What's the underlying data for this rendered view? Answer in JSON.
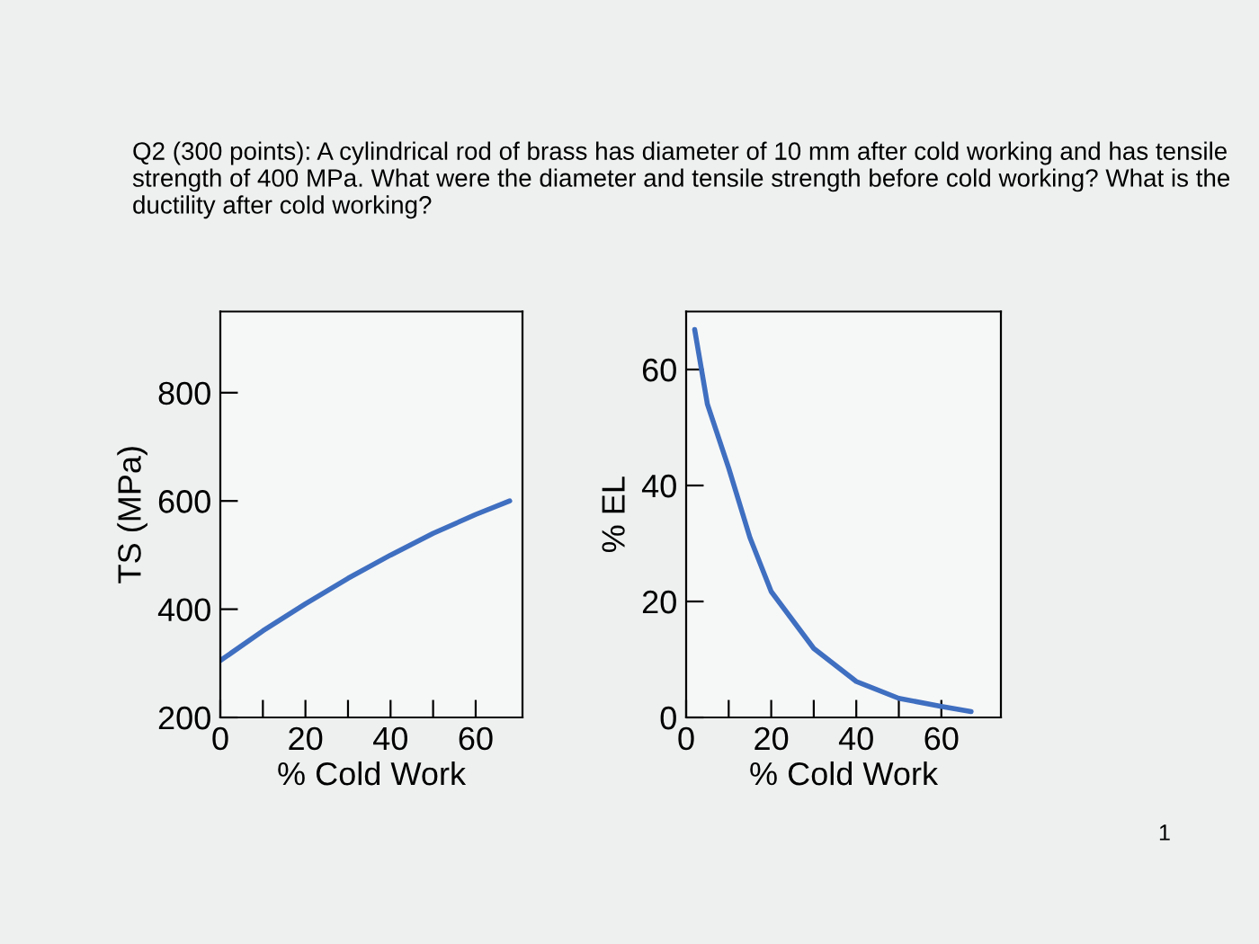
{
  "chart_data": [
    {
      "type": "line",
      "title": "Q2 (300 points): A cylindrical rod of brass has diameter of 10 mm after cold working and has tensile strength of 400 MPa. What were the diameter and tensile strength before cold working? What is the ductility after cold working?",
      "xlabel": "% Cold Work",
      "ylabel": "TS (MPa)",
      "series": [
        {
          "color": "#3f6fc0",
          "x": [
            0,
            10,
            20,
            30,
            40,
            50,
            60,
            68
          ],
          "values": [
            305,
            360,
            410,
            457,
            500,
            540,
            575,
            600
          ]
        }
      ],
      "xlim": [
        0,
        71
      ],
      "ylim": [
        200,
        950
      ],
      "xticks": [
        0,
        {
          "value": 10,
          "label": null
        },
        20,
        {
          "value": 30,
          "label": null
        },
        40,
        {
          "value": 50,
          "label": null
        },
        60
      ],
      "yticks": [
        200,
        400,
        600,
        800
      ],
      "grid": false,
      "legend": false
    },
    {
      "type": "line",
      "xlabel": "% Cold Work",
      "ylabel": "% EL",
      "annotations": [
        "1"
      ],
      "series": [
        {
          "color": "#3f6fc0",
          "x": [
            2,
            5,
            10,
            15,
            20,
            30,
            40,
            50,
            60,
            67
          ],
          "values": [
            66.9,
            54,
            43,
            31,
            21.7,
            11.9,
            6.2,
            3.3,
            1.9,
            1.0
          ]
        }
      ],
      "xlim": [
        0,
        74
      ],
      "ylim": [
        0,
        70
      ],
      "xticks": [
        0,
        {
          "value": 10,
          "label": null
        },
        20,
        {
          "value": 30,
          "label": null
        },
        40,
        {
          "value": 50,
          "label": null
        },
        60
      ],
      "yticks": [
        0,
        20,
        40,
        60
      ],
      "grid": false,
      "legend": false
    }
  ]
}
